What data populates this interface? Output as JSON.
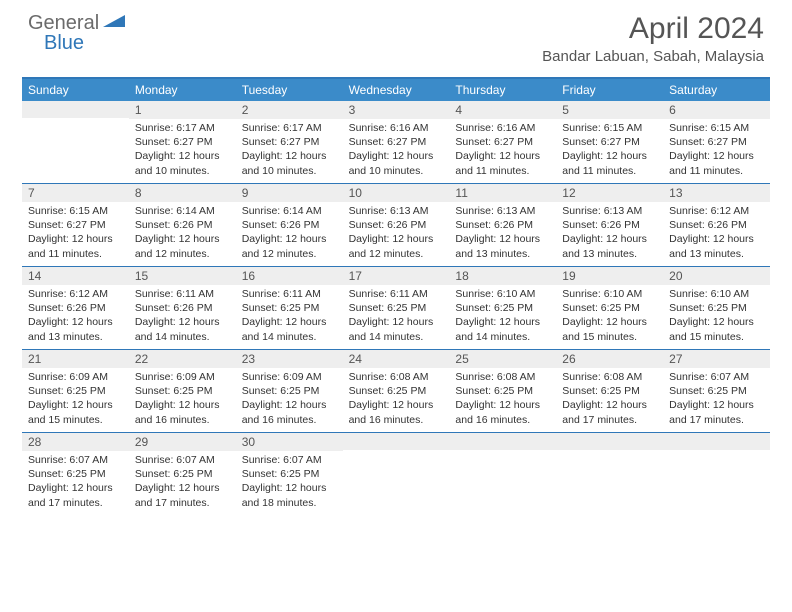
{
  "logo": {
    "text1": "General",
    "text2": "Blue"
  },
  "title": "April 2024",
  "location": "Bandar Labuan, Sabah, Malaysia",
  "colors": {
    "header_bg": "#3b8bc9",
    "border": "#2f77b8",
    "daynum_bg": "#eeeeee",
    "logo_gray": "#6b6b6b",
    "logo_blue": "#2f77b8"
  },
  "day_headers": [
    "Sunday",
    "Monday",
    "Tuesday",
    "Wednesday",
    "Thursday",
    "Friday",
    "Saturday"
  ],
  "weeks": [
    [
      {
        "n": "",
        "sr": "",
        "ss": "",
        "dl": ""
      },
      {
        "n": "1",
        "sr": "Sunrise: 6:17 AM",
        "ss": "Sunset: 6:27 PM",
        "dl": "Daylight: 12 hours and 10 minutes."
      },
      {
        "n": "2",
        "sr": "Sunrise: 6:17 AM",
        "ss": "Sunset: 6:27 PM",
        "dl": "Daylight: 12 hours and 10 minutes."
      },
      {
        "n": "3",
        "sr": "Sunrise: 6:16 AM",
        "ss": "Sunset: 6:27 PM",
        "dl": "Daylight: 12 hours and 10 minutes."
      },
      {
        "n": "4",
        "sr": "Sunrise: 6:16 AM",
        "ss": "Sunset: 6:27 PM",
        "dl": "Daylight: 12 hours and 11 minutes."
      },
      {
        "n": "5",
        "sr": "Sunrise: 6:15 AM",
        "ss": "Sunset: 6:27 PM",
        "dl": "Daylight: 12 hours and 11 minutes."
      },
      {
        "n": "6",
        "sr": "Sunrise: 6:15 AM",
        "ss": "Sunset: 6:27 PM",
        "dl": "Daylight: 12 hours and 11 minutes."
      }
    ],
    [
      {
        "n": "7",
        "sr": "Sunrise: 6:15 AM",
        "ss": "Sunset: 6:27 PM",
        "dl": "Daylight: 12 hours and 11 minutes."
      },
      {
        "n": "8",
        "sr": "Sunrise: 6:14 AM",
        "ss": "Sunset: 6:26 PM",
        "dl": "Daylight: 12 hours and 12 minutes."
      },
      {
        "n": "9",
        "sr": "Sunrise: 6:14 AM",
        "ss": "Sunset: 6:26 PM",
        "dl": "Daylight: 12 hours and 12 minutes."
      },
      {
        "n": "10",
        "sr": "Sunrise: 6:13 AM",
        "ss": "Sunset: 6:26 PM",
        "dl": "Daylight: 12 hours and 12 minutes."
      },
      {
        "n": "11",
        "sr": "Sunrise: 6:13 AM",
        "ss": "Sunset: 6:26 PM",
        "dl": "Daylight: 12 hours and 13 minutes."
      },
      {
        "n": "12",
        "sr": "Sunrise: 6:13 AM",
        "ss": "Sunset: 6:26 PM",
        "dl": "Daylight: 12 hours and 13 minutes."
      },
      {
        "n": "13",
        "sr": "Sunrise: 6:12 AM",
        "ss": "Sunset: 6:26 PM",
        "dl": "Daylight: 12 hours and 13 minutes."
      }
    ],
    [
      {
        "n": "14",
        "sr": "Sunrise: 6:12 AM",
        "ss": "Sunset: 6:26 PM",
        "dl": "Daylight: 12 hours and 13 minutes."
      },
      {
        "n": "15",
        "sr": "Sunrise: 6:11 AM",
        "ss": "Sunset: 6:26 PM",
        "dl": "Daylight: 12 hours and 14 minutes."
      },
      {
        "n": "16",
        "sr": "Sunrise: 6:11 AM",
        "ss": "Sunset: 6:25 PM",
        "dl": "Daylight: 12 hours and 14 minutes."
      },
      {
        "n": "17",
        "sr": "Sunrise: 6:11 AM",
        "ss": "Sunset: 6:25 PM",
        "dl": "Daylight: 12 hours and 14 minutes."
      },
      {
        "n": "18",
        "sr": "Sunrise: 6:10 AM",
        "ss": "Sunset: 6:25 PM",
        "dl": "Daylight: 12 hours and 14 minutes."
      },
      {
        "n": "19",
        "sr": "Sunrise: 6:10 AM",
        "ss": "Sunset: 6:25 PM",
        "dl": "Daylight: 12 hours and 15 minutes."
      },
      {
        "n": "20",
        "sr": "Sunrise: 6:10 AM",
        "ss": "Sunset: 6:25 PM",
        "dl": "Daylight: 12 hours and 15 minutes."
      }
    ],
    [
      {
        "n": "21",
        "sr": "Sunrise: 6:09 AM",
        "ss": "Sunset: 6:25 PM",
        "dl": "Daylight: 12 hours and 15 minutes."
      },
      {
        "n": "22",
        "sr": "Sunrise: 6:09 AM",
        "ss": "Sunset: 6:25 PM",
        "dl": "Daylight: 12 hours and 16 minutes."
      },
      {
        "n": "23",
        "sr": "Sunrise: 6:09 AM",
        "ss": "Sunset: 6:25 PM",
        "dl": "Daylight: 12 hours and 16 minutes."
      },
      {
        "n": "24",
        "sr": "Sunrise: 6:08 AM",
        "ss": "Sunset: 6:25 PM",
        "dl": "Daylight: 12 hours and 16 minutes."
      },
      {
        "n": "25",
        "sr": "Sunrise: 6:08 AM",
        "ss": "Sunset: 6:25 PM",
        "dl": "Daylight: 12 hours and 16 minutes."
      },
      {
        "n": "26",
        "sr": "Sunrise: 6:08 AM",
        "ss": "Sunset: 6:25 PM",
        "dl": "Daylight: 12 hours and 17 minutes."
      },
      {
        "n": "27",
        "sr": "Sunrise: 6:07 AM",
        "ss": "Sunset: 6:25 PM",
        "dl": "Daylight: 12 hours and 17 minutes."
      }
    ],
    [
      {
        "n": "28",
        "sr": "Sunrise: 6:07 AM",
        "ss": "Sunset: 6:25 PM",
        "dl": "Daylight: 12 hours and 17 minutes."
      },
      {
        "n": "29",
        "sr": "Sunrise: 6:07 AM",
        "ss": "Sunset: 6:25 PM",
        "dl": "Daylight: 12 hours and 17 minutes."
      },
      {
        "n": "30",
        "sr": "Sunrise: 6:07 AM",
        "ss": "Sunset: 6:25 PM",
        "dl": "Daylight: 12 hours and 18 minutes."
      },
      {
        "n": "",
        "sr": "",
        "ss": "",
        "dl": ""
      },
      {
        "n": "",
        "sr": "",
        "ss": "",
        "dl": ""
      },
      {
        "n": "",
        "sr": "",
        "ss": "",
        "dl": ""
      },
      {
        "n": "",
        "sr": "",
        "ss": "",
        "dl": ""
      }
    ]
  ]
}
